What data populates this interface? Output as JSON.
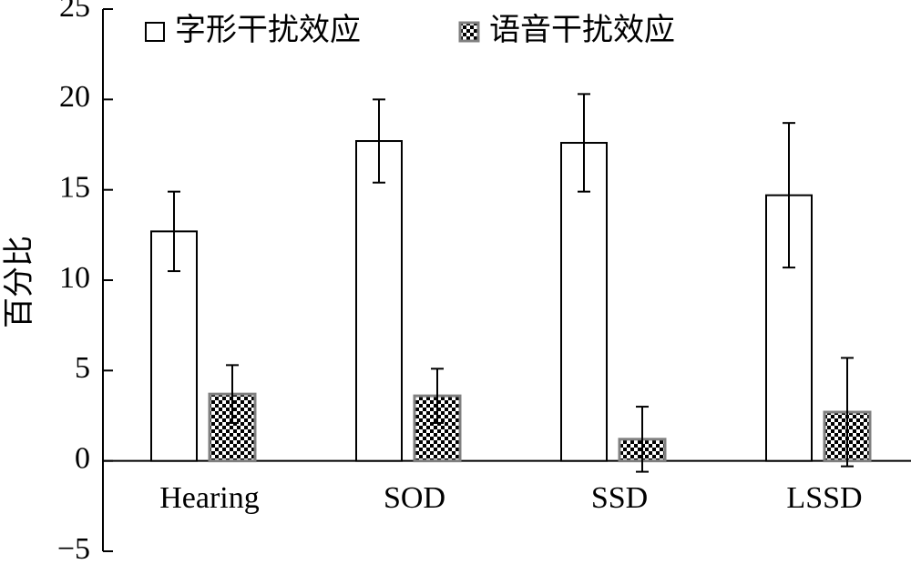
{
  "chart_data": {
    "type": "bar",
    "y_label": "百分比",
    "categories": [
      "Hearing",
      "SOD",
      "SSD",
      "LSSD"
    ],
    "series": [
      {
        "name": "字形干扰效应",
        "color": "#ffffff",
        "values": [
          12.7,
          17.7,
          17.6,
          14.7
        ],
        "errors": [
          2.2,
          2.3,
          2.7,
          4.0
        ]
      },
      {
        "name": "语音干扰效应",
        "color": "#808080",
        "values": [
          3.7,
          3.6,
          1.2,
          2.7
        ],
        "errors": [
          1.6,
          1.5,
          1.8,
          3.0
        ]
      }
    ],
    "ylim": [
      -5,
      25
    ],
    "yticks": [
      {
        "value": -5,
        "label": "−5"
      },
      0,
      5,
      10,
      15,
      20,
      25
    ],
    "legend": "top-left"
  }
}
